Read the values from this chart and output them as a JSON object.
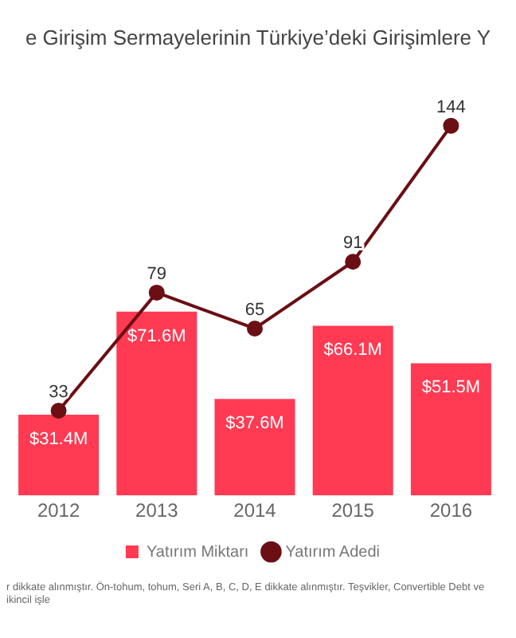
{
  "chart_data": {
    "type": "bar",
    "title": "e Girişim Sermayelerinin Türkiye’deki Girişimlere Y",
    "categories": [
      "2012",
      "2013",
      "2014",
      "2015",
      "2016"
    ],
    "series": [
      {
        "name": "Yatırım Miktarı",
        "color": "#ff3a52",
        "values": [
          31.4,
          71.6,
          37.6,
          66.1,
          51.5
        ],
        "value_labels": [
          "$31.4M",
          "$71.6M",
          "$37.6M",
          "$66.1M",
          "$51.5M"
        ]
      },
      {
        "name": "Yatırım Adedi",
        "type": "line",
        "color": "#6b0f14",
        "values": [
          33,
          79,
          65,
          91,
          144
        ],
        "data_labels": true
      }
    ],
    "tick_labels": "x",
    "legend": "bottom",
    "marker": "circle",
    "grid": false,
    "annotations": [
      "r dikkate alınmıştır. Ön-tohum, tohum, Seri A, B, C, D, E dikkate alınmıştır. Teşvikler, Convertible Debt ve ikincil işle"
    ]
  }
}
